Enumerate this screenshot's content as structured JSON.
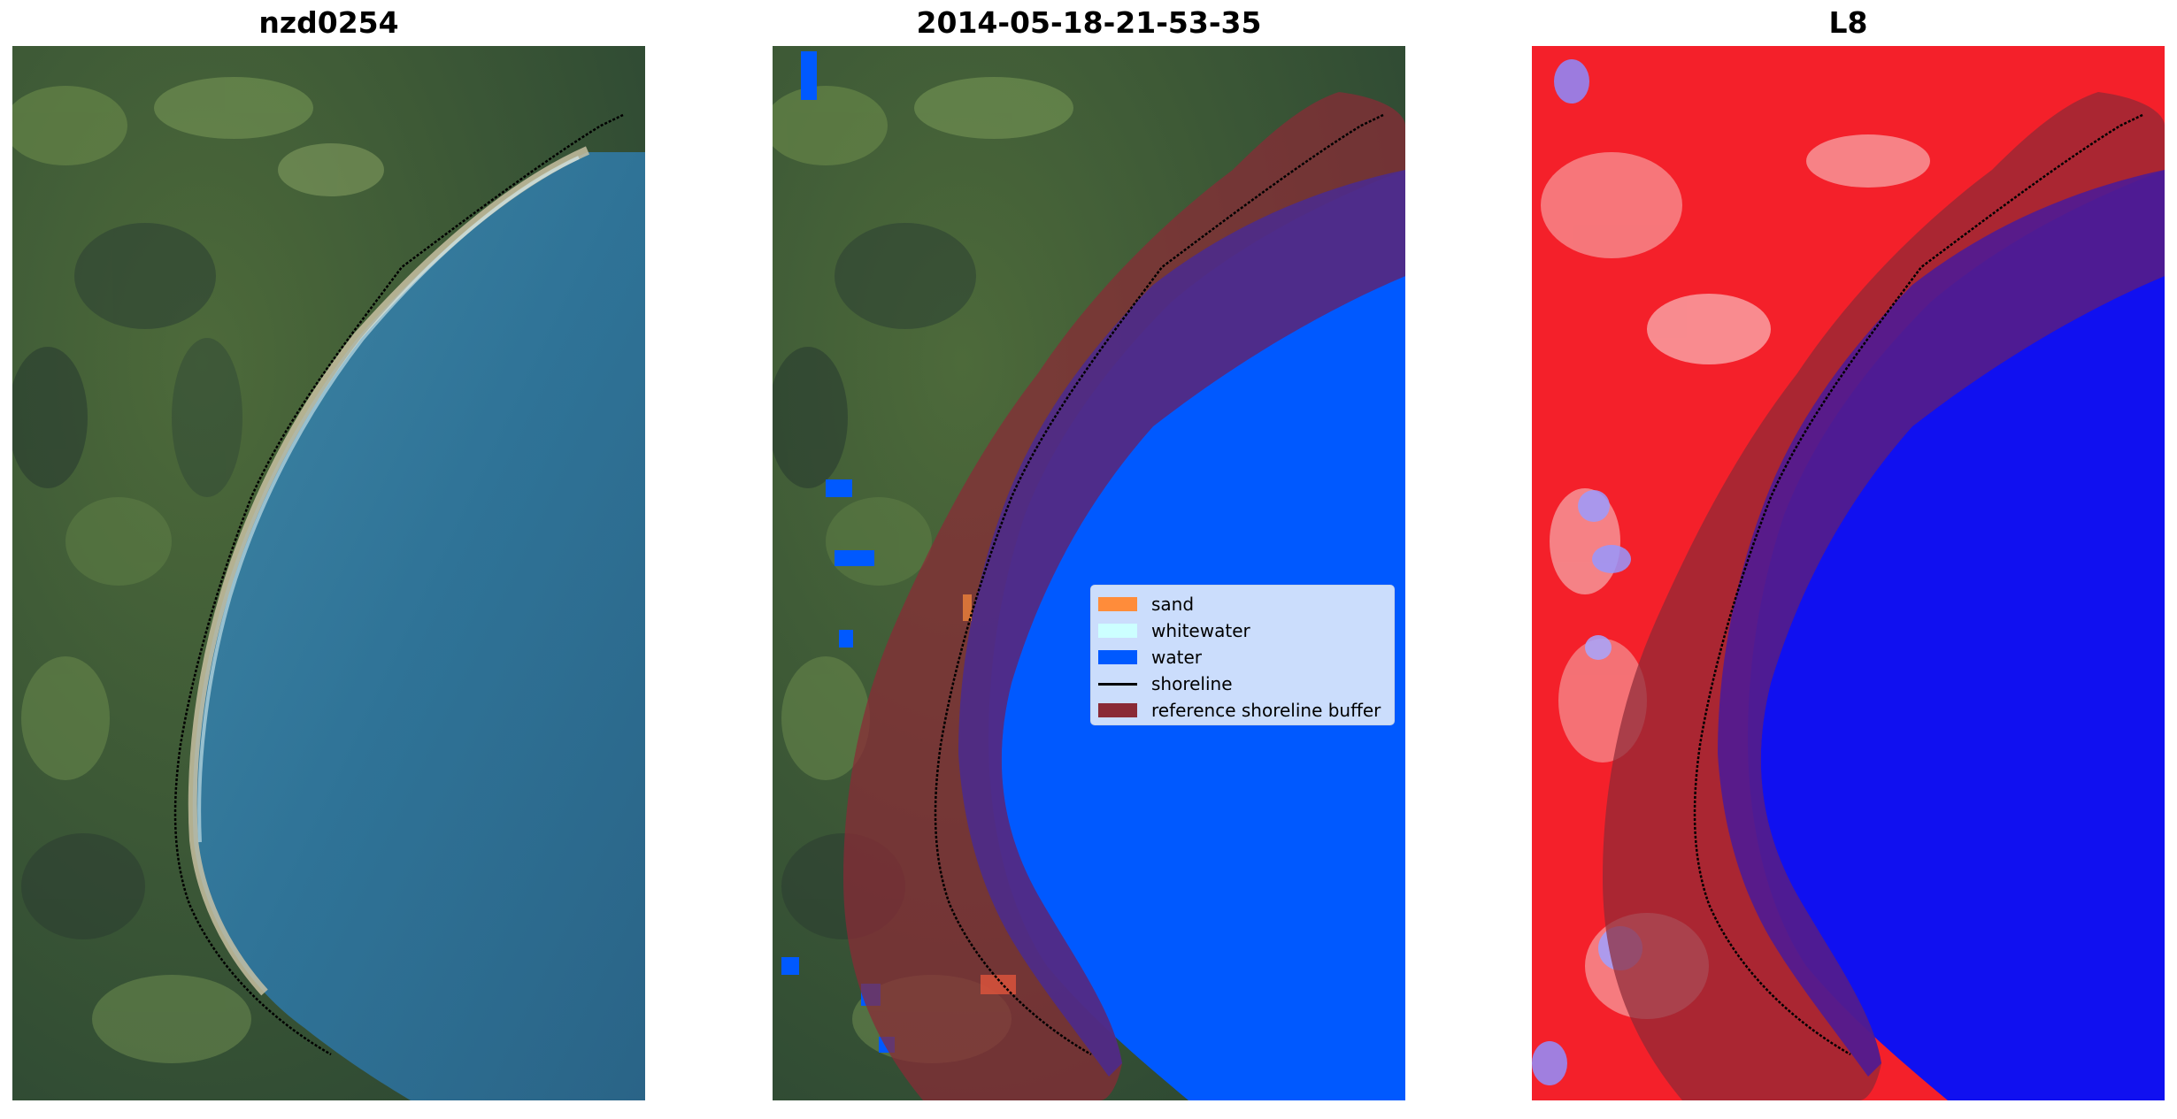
{
  "panels": [
    {
      "title": "nzd0254",
      "view": "rgb-image"
    },
    {
      "title": "2014-05-18-21-53-35",
      "view": "classified-image"
    },
    {
      "title": "L8",
      "view": "mndwi-image"
    }
  ],
  "legend": {
    "items": [
      {
        "label": "sand",
        "color": "#ff8c3a",
        "kind": "patch"
      },
      {
        "label": "whitewater",
        "color": "#ccffff",
        "kind": "patch"
      },
      {
        "label": "water",
        "color": "#0059ff",
        "kind": "patch"
      },
      {
        "label": "shoreline",
        "color": "#000000",
        "kind": "line"
      },
      {
        "label": "reference shoreline buffer",
        "color": "#8a2a36",
        "kind": "patch"
      }
    ]
  }
}
